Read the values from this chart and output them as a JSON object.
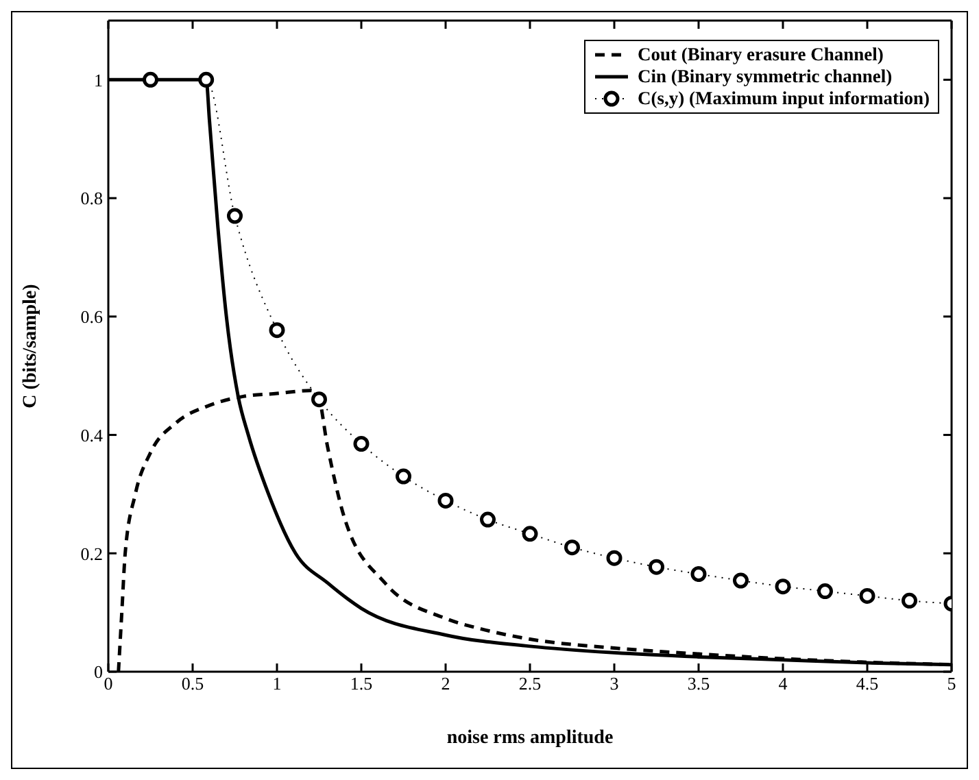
{
  "chart_data": {
    "type": "line",
    "xlabel": "noise rms amplitude",
    "ylabel": "C (bits/sample)",
    "xlim": [
      0,
      5
    ],
    "ylim": [
      0,
      1.1
    ],
    "xticks": [
      0,
      0.5,
      1,
      1.5,
      2,
      2.5,
      3,
      3.5,
      4,
      4.5,
      5
    ],
    "yticks": [
      0,
      0.2,
      0.4,
      0.6,
      0.8,
      1
    ],
    "legend": "top right",
    "series": [
      {
        "name": "Cout (Binary erasure Channel)",
        "color": "#000000",
        "line_style": "dashed",
        "marker": "none",
        "x": [
          0.06,
          0.08,
          0.1,
          0.16,
          0.25,
          0.4,
          0.6,
          0.8,
          1,
          1.2,
          1.24,
          1.3,
          1.4,
          1.64,
          2,
          2.2,
          2.5,
          3,
          3.5,
          4,
          4.5,
          5
        ],
        "values": [
          0,
          0.1,
          0.2,
          0.3,
          0.37,
          0.42,
          0.45,
          0.465,
          0.47,
          0.475,
          0.47,
          0.38,
          0.26,
          0.15,
          0.09,
          0.073,
          0.055,
          0.04,
          0.03,
          0.022,
          0.016,
          0.012
        ]
      },
      {
        "name": "Cin (Binary symmetric channel)",
        "color": "#000000",
        "line_style": "solid",
        "marker": "none",
        "x": [
          0,
          0.58,
          0.6,
          0.65,
          0.7,
          0.77,
          0.83,
          0.95,
          1.11,
          1.3,
          1.5,
          2,
          2.5,
          3,
          3.5,
          4,
          4.5,
          5
        ],
        "values": [
          1,
          1,
          0.93,
          0.75,
          0.6,
          0.465,
          0.4,
          0.3,
          0.2,
          0.15,
          0.107,
          0.062,
          0.043,
          0.032,
          0.025,
          0.02,
          0.015,
          0.012
        ]
      },
      {
        "name": "C(s,y) (Maximum input information)",
        "color": "#000000",
        "line_style": "dotted",
        "marker": "circle",
        "x": [
          0.25,
          0.58,
          0.75,
          1,
          1.25,
          1.5,
          1.75,
          2,
          2.25,
          2.5,
          2.75,
          3,
          3.25,
          3.5,
          3.75,
          4,
          4.25,
          4.5,
          4.75,
          5
        ],
        "values": [
          1,
          1,
          0.77,
          0.577,
          0.46,
          0.385,
          0.33,
          0.289,
          0.257,
          0.233,
          0.21,
          0.192,
          0.177,
          0.165,
          0.154,
          0.144,
          0.136,
          0.128,
          0.12,
          0.115
        ]
      }
    ]
  }
}
